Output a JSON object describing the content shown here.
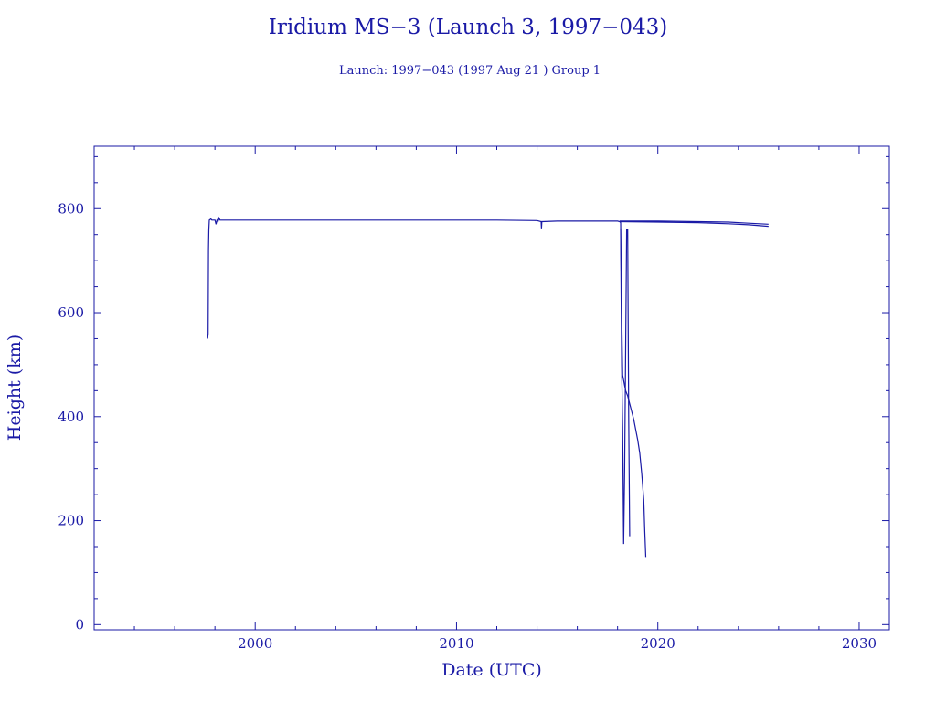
{
  "chart_data": {
    "type": "line",
    "title": "Iridium MS−3 (Launch 3, 1997−043)",
    "subtitle": "Launch: 1997−043  (1997 Aug 21 )  Group 1",
    "xlabel": "Date (UTC)",
    "ylabel": "Height (km)",
    "xlim": [
      1992.0,
      2031.5
    ],
    "ylim": [
      -10,
      920
    ],
    "x_ticks": [
      2000,
      2010,
      2020,
      2030
    ],
    "y_ticks": [
      0,
      200,
      400,
      600,
      800
    ],
    "x_tick_labels": [
      "2000",
      "2010",
      "2020",
      "2030"
    ],
    "y_tick_labels": [
      "0",
      "200",
      "400",
      "600",
      "800"
    ],
    "grid": false,
    "legend": "none",
    "colors": {
      "axis": "#1a1aa6",
      "series": "#1a1aa6",
      "background": "#ffffff"
    },
    "series": [
      {
        "values": [
          [
            1997.64,
            550
          ],
          [
            1997.66,
            560
          ],
          [
            1997.68,
            720
          ],
          [
            1997.7,
            760
          ],
          [
            1997.72,
            778
          ],
          [
            1997.8,
            780
          ],
          [
            1997.85,
            778
          ],
          [
            1998.0,
            778
          ],
          [
            1998.05,
            770
          ],
          [
            1998.1,
            778
          ],
          [
            1998.15,
            775
          ],
          [
            1998.2,
            782
          ],
          [
            1998.25,
            778
          ],
          [
            2005.0,
            778
          ],
          [
            2012.0,
            778
          ],
          [
            2014.0,
            777
          ],
          [
            2014.2,
            775
          ],
          [
            2014.22,
            762
          ],
          [
            2014.24,
            775
          ],
          [
            2015.0,
            776
          ],
          [
            2018.0,
            776
          ],
          [
            2018.1,
            775
          ]
        ]
      },
      {
        "values": [
          [
            2018.1,
            775
          ],
          [
            2018.15,
            773
          ],
          [
            2018.2,
            600
          ],
          [
            2018.25,
            480
          ],
          [
            2018.3,
            470
          ],
          [
            2018.35,
            460
          ],
          [
            2018.4,
            450
          ],
          [
            2018.5,
            440
          ],
          [
            2018.6,
            425
          ],
          [
            2018.7,
            410
          ],
          [
            2018.8,
            395
          ],
          [
            2018.9,
            375
          ],
          [
            2019.0,
            355
          ],
          [
            2019.1,
            330
          ],
          [
            2019.2,
            290
          ],
          [
            2019.3,
            240
          ],
          [
            2019.35,
            180
          ],
          [
            2019.4,
            130
          ]
        ]
      },
      {
        "values": [
          [
            2018.15,
            762
          ],
          [
            2018.2,
            500
          ],
          [
            2018.25,
            380
          ],
          [
            2018.3,
            155
          ],
          [
            2018.35,
            300
          ],
          [
            2018.45,
            760
          ],
          [
            2018.5,
            760
          ],
          [
            2018.55,
            400
          ],
          [
            2018.6,
            170
          ]
        ]
      },
      {
        "values": [
          [
            2018.1,
            776
          ],
          [
            2020.0,
            776
          ],
          [
            2022.0,
            775
          ],
          [
            2023.5,
            774
          ],
          [
            2024.5,
            772
          ],
          [
            2025.5,
            770
          ]
        ]
      },
      {
        "values": [
          [
            2018.1,
            775
          ],
          [
            2020.0,
            774
          ],
          [
            2022.0,
            773
          ],
          [
            2023.5,
            771
          ],
          [
            2024.5,
            769
          ],
          [
            2025.5,
            766
          ]
        ]
      }
    ]
  }
}
